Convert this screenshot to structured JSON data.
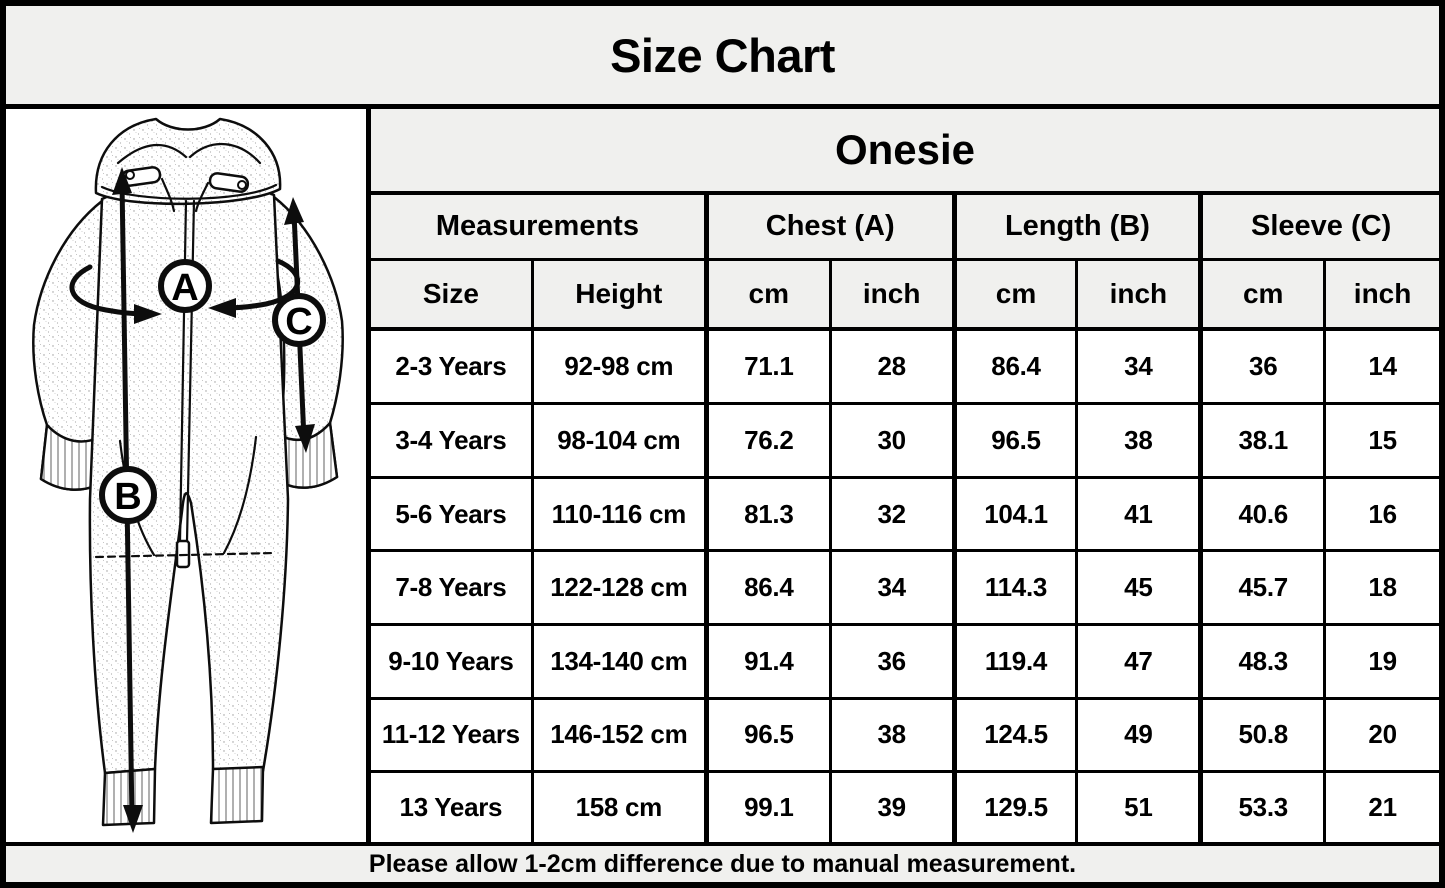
{
  "title": "Size Chart",
  "product": "Onesie",
  "figure": {
    "label_a": "A",
    "label_b": "B",
    "label_c": "C"
  },
  "table": {
    "group_headers": [
      {
        "label": "Measurements",
        "colspan": 2
      },
      {
        "label": "Chest (A)",
        "colspan": 2
      },
      {
        "label": "Length (B)",
        "colspan": 2
      },
      {
        "label": "Sleeve (C)",
        "colspan": 2
      }
    ],
    "sub_headers": [
      "Size",
      "Height",
      "cm",
      "inch",
      "cm",
      "inch",
      "cm",
      "inch"
    ],
    "rows": [
      [
        "2-3 Years",
        "92-98 cm",
        "71.1",
        "28",
        "86.4",
        "34",
        "36",
        "14"
      ],
      [
        "3-4 Years",
        "98-104 cm",
        "76.2",
        "30",
        "96.5",
        "38",
        "38.1",
        "15"
      ],
      [
        "5-6 Years",
        "110-116 cm",
        "81.3",
        "32",
        "104.1",
        "41",
        "40.6",
        "16"
      ],
      [
        "7-8 Years",
        "122-128 cm",
        "86.4",
        "34",
        "114.3",
        "45",
        "45.7",
        "18"
      ],
      [
        "9-10 Years",
        "134-140 cm",
        "91.4",
        "36",
        "119.4",
        "47",
        "48.3",
        "19"
      ],
      [
        "11-12 Years",
        "146-152 cm",
        "96.5",
        "38",
        "124.5",
        "49",
        "50.8",
        "20"
      ],
      [
        "13 Years",
        "158 cm",
        "99.1",
        "39",
        "129.5",
        "51",
        "53.3",
        "21"
      ]
    ]
  },
  "footer_note": "Please allow 1-2cm difference due to manual measurement.",
  "colors": {
    "band_bg": "#f0f0ee",
    "cell_bg": "#ffffff",
    "border": "#000000",
    "text": "#000000"
  }
}
